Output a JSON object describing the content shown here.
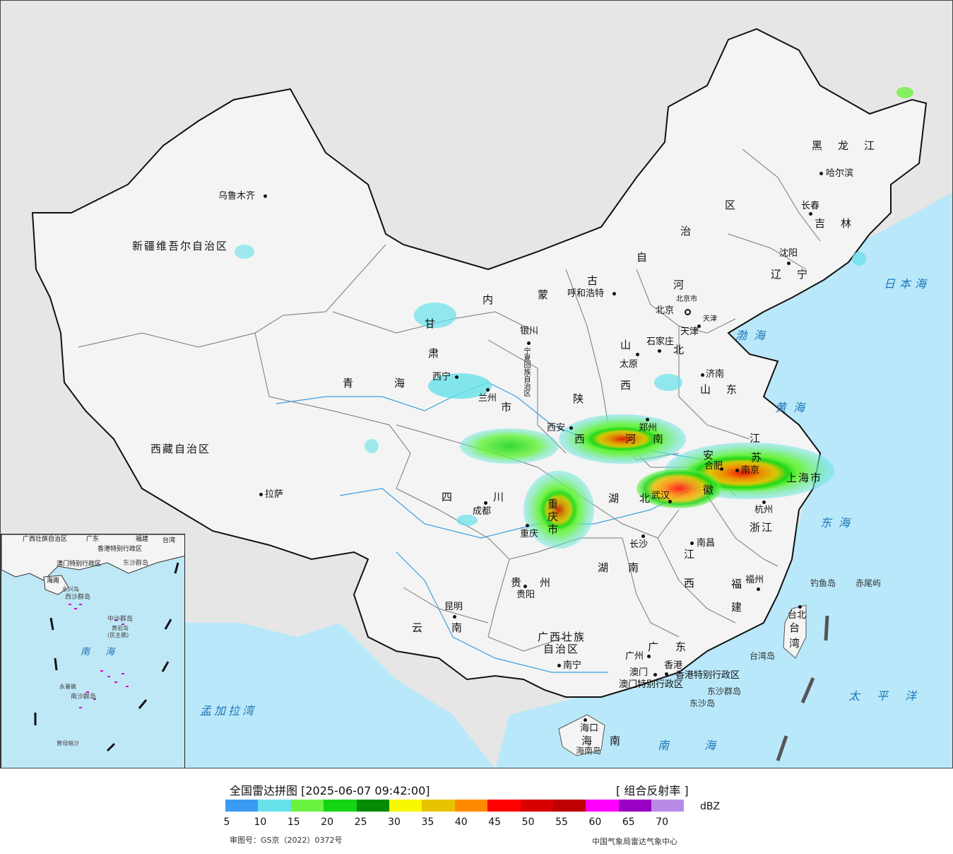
{
  "map": {
    "provinces": {
      "xinjiang": "新疆维吾尔自治区",
      "xizang": "西藏自治区",
      "qinghai_1": "青",
      "qinghai_2": "海",
      "gansu_1": "甘",
      "gansu_2": "肃",
      "neimenggu_1": "内",
      "neimenggu_2": "蒙",
      "neimenggu_3": "古",
      "neimenggu_4": "自",
      "neimenggu_5": "治",
      "neimenggu_6": "区",
      "heilongjiang": "黑龙江",
      "jilin": "吉林",
      "liaoning": "辽宁",
      "hebei_1": "河",
      "hebei_2": "北",
      "shanxi_1": "山",
      "shanxi_2": "西",
      "shandong": "山东",
      "shaanxi_1": "陕",
      "shaanxi_2": "西",
      "henan_1": "河",
      "henan_2": "南",
      "jiangsu_1": "江",
      "jiangsu_2": "苏",
      "anhui_1": "安",
      "anhui_2": "徽",
      "hubei_1": "湖",
      "hubei_2": "北",
      "hunan_1": "湖",
      "hunan_2": "南",
      "sichuan_1": "四",
      "sichuan_2": "川",
      "chongqing_1": "重",
      "chongqing_2": "庆",
      "chongqing_3": "市",
      "guizhou_1": "贵",
      "guizhou_2": "州",
      "yunnan_1": "云",
      "yunnan_2": "南",
      "guangxi_1": "广西壮族",
      "guangxi_2": "自治区",
      "guangdong_1": "广",
      "guangdong_2": "东",
      "jiangxi_1": "江",
      "jiangxi_2": "西",
      "zhejiang": "浙江",
      "fujian_1": "福",
      "fujian_2": "建",
      "hainan_1": "海",
      "hainan_2": "南",
      "taiwan_1": "台",
      "taiwan_2": "湾",
      "shanghai": "上海市",
      "ningxia": "宁夏回族自治区",
      "tianjin": "天津",
      "beijing_city": "北京市",
      "hongkong_sar": "香港特别行政区",
      "macau_sar": "澳门特别行政区",
      "hebei_tag": "河",
      "gansu_shi": "市"
    },
    "cities": {
      "urumqi": "乌鲁木齐",
      "lhasa": "拉萨",
      "xining": "西宁",
      "lanzhou": "兰州",
      "yinchuan": "银川",
      "hohhot": "呼和浩特",
      "beijing": "北京",
      "tianjin": "天津",
      "shijiazhuang": "石家庄",
      "taiyuan": "太原",
      "jinan": "济南",
      "zhengzhou": "郑州",
      "xian": "西安",
      "hefei": "合肥",
      "nanjing": "南京",
      "shanghai": "上海",
      "hangzhou": "杭州",
      "wuhan": "武汉",
      "chengdu": "成都",
      "chongqing": "重庆",
      "changsha": "长沙",
      "nanchang": "南昌",
      "fuzhou": "福州",
      "guiyang": "贵阳",
      "kunming": "昆明",
      "nanning": "南宁",
      "guangzhou": "广州",
      "macau": "澳门",
      "hongkong": "香港",
      "haikou": "海口",
      "taibei": "台北",
      "harbin": "哈尔滨",
      "changchun": "长春",
      "shenyang": "沈阳"
    },
    "seas": {
      "bohai": "渤海",
      "huanghai": "黄海",
      "donghai": "东海",
      "nanhai": "南海",
      "ribenhai": "日本海",
      "taipingyang": "太平洋",
      "mengjialawan": "孟加拉湾"
    },
    "islands": {
      "diaoyu": "钓鱼岛",
      "chiwei": "赤尾屿",
      "taiwan_island": "台湾岛",
      "dongsha_islands": "东沙群岛",
      "dongsha_island": "东沙岛",
      "hainan_island": "海南岛"
    }
  },
  "inset": {
    "labels": {
      "guangxi": "广西壮族自治区",
      "guangdong": "广东",
      "fujian": "福建",
      "taiwan": "台湾",
      "hk": "香港特别行政区",
      "macau": "澳门特别行政区",
      "dongsha": "东沙群岛",
      "hainan": "海南",
      "xisha": "西沙群岛",
      "yongxing": "永兴岛",
      "zhongsha": "中沙群岛",
      "huangyan": "黄岩岛",
      "huangyan2": "(民主礁)",
      "nansha": "南沙群岛",
      "yongshu": "永暑礁",
      "zengmu": "曾母暗沙",
      "nanhai": "南海"
    }
  },
  "legend": {
    "title": "全国雷达拼图 [2025-06-07 09:42:00]",
    "product": "[ 组合反射率 ]",
    "unit": "dBZ",
    "ticks": [
      "5",
      "10",
      "15",
      "20",
      "25",
      "30",
      "35",
      "40",
      "45",
      "50",
      "55",
      "60",
      "65",
      "70"
    ],
    "colors": [
      "#3a9bf5",
      "#66e1ea",
      "#6cf341",
      "#14d514",
      "#078b07",
      "#f8f800",
      "#e8c300",
      "#ff8a00",
      "#ff0000",
      "#d80000",
      "#bd0000",
      "#ff00ff",
      "#9a00c3",
      "#b98be9"
    ],
    "footnote_left": "审图号：GS京（2022）0372号",
    "footnote_right": "中国气象局雷达气象中心"
  }
}
